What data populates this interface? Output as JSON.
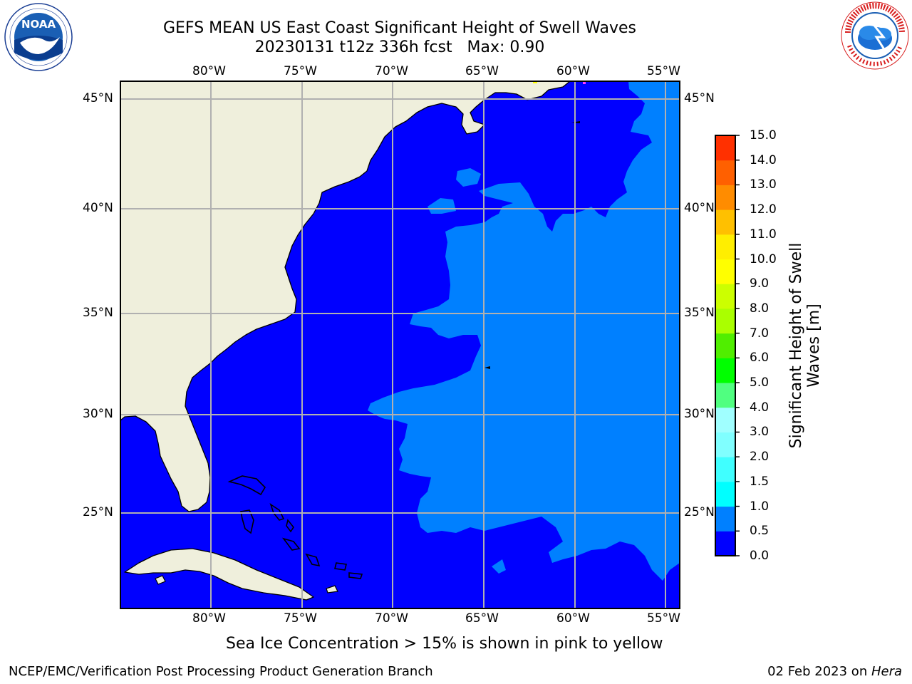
{
  "title": {
    "line1": "GEFS MEAN US East Coast Significant Height of Swell Waves",
    "line2": "20230131 t12z 336h fcst   Max: 0.90"
  },
  "logos": {
    "left": {
      "name": "NOAA",
      "ring_text": "NATIONAL OCEANIC AND ATMOSPHERIC ADMINISTRATION · U.S. DEPARTMENT OF COMMERCE"
    },
    "right": {
      "name": "NATIONAL WEATHER SERVICE"
    }
  },
  "map": {
    "longitude_ticks": [
      "80°W",
      "75°W",
      "70°W",
      "65°W",
      "60°W",
      "55°W"
    ],
    "latitude_ticks": [
      "45°N",
      "40°N",
      "35°N",
      "30°N",
      "25°N"
    ],
    "extent": {
      "lon": [
        -85,
        -54.5
      ],
      "lat": [
        20.5,
        45.8
      ]
    },
    "colors": {
      "land": "#efefdc",
      "swell_0_0_5": "#0000ff",
      "swell_0_5_1_0": "#0080ff",
      "grid": "#b0b0b0",
      "coast": "#000000"
    }
  },
  "colorbar": {
    "title_line1": "Significant Height of Swell",
    "title_line2": "Waves [m]",
    "tick_labels": [
      "0.0",
      "0.5",
      "1.0",
      "1.5",
      "2.0",
      "3.0",
      "4.0",
      "5.0",
      "6.0",
      "7.0",
      "8.0",
      "9.0",
      "10.0",
      "11.0",
      "12.0",
      "13.0",
      "14.0",
      "15.0"
    ],
    "colors": [
      "#0000ff",
      "#0080ff",
      "#00ffff",
      "#40ffff",
      "#80ffff",
      "#a0ffff",
      "#50ff80",
      "#00ff00",
      "#50ee00",
      "#aaff00",
      "#ccff00",
      "#ffff00",
      "#ffee00",
      "#ffc000",
      "#ff8c00",
      "#ff6000",
      "#ff3000",
      "#ff0000"
    ]
  },
  "caption": "Sea Ice Concentration > 15% is shown in pink to yellow",
  "footer": {
    "left": "NCEP/EMC/Verification Post Processing Product Generation Branch",
    "right_date": "02 Feb 2023 on ",
    "right_host": "Hera"
  }
}
